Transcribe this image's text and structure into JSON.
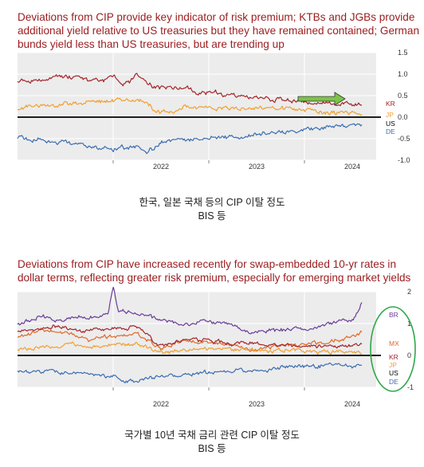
{
  "titles": {
    "top": "Deviations from CIP provide key indicator of risk premium; KTBs and JGBs provide additional yield relative to US treasuries but they have remained contained; German bunds yield less than US treasuries, but are trending up",
    "bottom": "Deviations from CIP have increased recently for swap-embedded 10-yr rates in dollar terms, reflecting greater risk premium, especially for emerging market yields"
  },
  "captions": {
    "top_line1": "한국, 일본 국채 등의 CIP 이탈 정도",
    "top_line2": "BIS 등",
    "bottom_line1": "국가별 10년 국채 금리 관련 CIP 이탈 정도",
    "bottom_line2": "BIS 등"
  },
  "colors": {
    "KR": "#a3262b",
    "JP": "#f0a030",
    "DE": "#3b6db0",
    "BR": "#6a3d9a",
    "MX": "#e06a2a",
    "US": "#000000",
    "arrow": "#7dc24a",
    "circle": "#2ea84a",
    "plot_bg": "#ececec",
    "grid": "#ffffff"
  },
  "chart_data": [
    {
      "type": "line",
      "x_ticks": [
        "2022",
        "2023",
        "2024"
      ],
      "x_tick_positions": [
        2022.0,
        2023.0,
        2024.0
      ],
      "xlim": [
        2021.0,
        2024.75
      ],
      "ylim": [
        -1.0,
        1.5
      ],
      "y_ticks": [
        "1.5",
        "1.0",
        "0.5",
        "0.0",
        "-0.5",
        "-1.0"
      ],
      "y_tick_values": [
        1.5,
        1.0,
        0.5,
        0.0,
        -0.5,
        -1.0
      ],
      "zero_line": true,
      "series": [
        {
          "name": "KR",
          "x": [
            2021.0,
            2021.25,
            2021.5,
            2021.75,
            2022.0,
            2022.1,
            2022.25,
            2022.35,
            2022.5,
            2022.75,
            2023.0,
            2023.25,
            2023.5,
            2023.75,
            2024.0,
            2024.25,
            2024.5,
            2024.6
          ],
          "y": [
            0.85,
            0.9,
            0.95,
            0.85,
            0.9,
            0.75,
            0.95,
            0.75,
            0.7,
            0.65,
            0.55,
            0.5,
            0.45,
            0.4,
            0.35,
            0.3,
            0.3,
            0.28
          ]
        },
        {
          "name": "JP",
          "x": [
            2021.0,
            2021.25,
            2021.5,
            2021.75,
            2022.0,
            2022.25,
            2022.5,
            2022.75,
            2023.0,
            2023.25,
            2023.5,
            2023.75,
            2024.0,
            2024.25,
            2024.5,
            2024.6
          ],
          "y": [
            0.22,
            0.28,
            0.3,
            0.35,
            0.38,
            0.4,
            0.12,
            0.2,
            0.22,
            0.22,
            0.2,
            0.18,
            0.15,
            0.1,
            0.08,
            0.05
          ]
        },
        {
          "name": "DE",
          "x": [
            2021.0,
            2021.25,
            2021.5,
            2021.75,
            2022.0,
            2022.25,
            2022.35,
            2022.5,
            2022.75,
            2023.0,
            2023.25,
            2023.5,
            2023.75,
            2024.0,
            2024.25,
            2024.5,
            2024.6
          ],
          "y": [
            -0.45,
            -0.55,
            -0.6,
            -0.65,
            -0.75,
            -0.7,
            -0.85,
            -0.6,
            -0.55,
            -0.5,
            -0.45,
            -0.4,
            -0.35,
            -0.3,
            -0.25,
            -0.2,
            -0.2
          ]
        }
      ],
      "series_labels": [
        "KR",
        "JP",
        "US",
        "DE"
      ],
      "annotation": "downward-arrow"
    },
    {
      "type": "line",
      "x_ticks": [
        "2022",
        "2023",
        "2024"
      ],
      "x_tick_positions": [
        2022.0,
        2023.0,
        2024.0
      ],
      "xlim": [
        2021.0,
        2024.75
      ],
      "ylim": [
        -1.0,
        2.0
      ],
      "y_ticks": [
        "2",
        "1",
        "0",
        "-1"
      ],
      "y_tick_values": [
        2,
        1,
        0,
        -1
      ],
      "zero_line": true,
      "series": [
        {
          "name": "BR",
          "x": [
            2021.0,
            2021.25,
            2021.5,
            2021.75,
            2021.95,
            2022.0,
            2022.05,
            2022.25,
            2022.5,
            2022.75,
            2023.0,
            2023.25,
            2023.5,
            2023.75,
            2024.0,
            2024.25,
            2024.5,
            2024.6
          ],
          "y": [
            1.0,
            1.2,
            1.1,
            1.2,
            1.3,
            2.2,
            1.4,
            1.3,
            1.1,
            1.0,
            1.1,
            0.9,
            0.7,
            0.8,
            0.8,
            1.0,
            1.1,
            1.6
          ]
        },
        {
          "name": "MX",
          "x": [
            2021.0,
            2021.25,
            2021.5,
            2021.75,
            2022.0,
            2022.25,
            2022.5,
            2022.75,
            2023.0,
            2023.25,
            2023.5,
            2023.75,
            2024.0,
            2024.25,
            2024.5,
            2024.6
          ],
          "y": [
            0.6,
            0.8,
            0.7,
            0.5,
            0.6,
            0.7,
            0.2,
            0.5,
            0.4,
            0.3,
            0.2,
            0.3,
            0.3,
            0.4,
            0.6,
            0.7
          ]
        },
        {
          "name": "KR",
          "x": [
            2021.0,
            2021.25,
            2021.5,
            2021.75,
            2022.0,
            2022.25,
            2022.5,
            2022.75,
            2023.0,
            2023.25,
            2023.5,
            2023.75,
            2024.0,
            2024.25,
            2024.5,
            2024.6
          ],
          "y": [
            0.8,
            0.9,
            0.85,
            0.8,
            0.8,
            0.9,
            0.3,
            0.5,
            0.45,
            0.4,
            0.35,
            0.3,
            0.3,
            0.25,
            0.3,
            0.3
          ]
        },
        {
          "name": "JP",
          "x": [
            2021.0,
            2021.25,
            2021.5,
            2021.75,
            2022.0,
            2022.25,
            2022.5,
            2022.75,
            2023.0,
            2023.25,
            2023.5,
            2023.75,
            2024.0,
            2024.25,
            2024.5,
            2024.6
          ],
          "y": [
            0.2,
            0.25,
            0.3,
            0.3,
            0.35,
            0.35,
            0.1,
            0.15,
            0.2,
            0.2,
            0.15,
            0.15,
            0.12,
            0.1,
            0.08,
            0.05
          ]
        },
        {
          "name": "DE",
          "x": [
            2021.0,
            2021.25,
            2021.5,
            2021.75,
            2022.0,
            2022.25,
            2022.5,
            2022.75,
            2023.0,
            2023.25,
            2023.5,
            2023.75,
            2024.0,
            2024.25,
            2024.5,
            2024.6
          ],
          "y": [
            -0.45,
            -0.5,
            -0.55,
            -0.6,
            -0.7,
            -0.8,
            -0.65,
            -0.6,
            -0.55,
            -0.5,
            -0.45,
            -0.4,
            -0.35,
            -0.3,
            -0.28,
            -0.25
          ]
        }
      ],
      "series_labels": [
        "BR",
        "MX",
        "KR",
        "JP",
        "US",
        "DE"
      ],
      "annotation": "ellipse-around-recent-values"
    }
  ]
}
